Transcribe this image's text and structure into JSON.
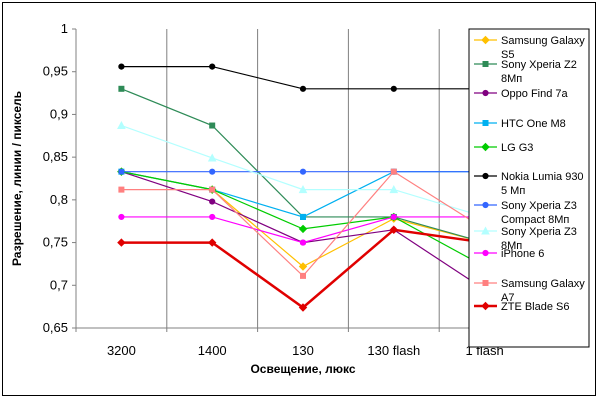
{
  "chart_data": {
    "type": "line",
    "title": "",
    "xlabel": "Освещение, люкс",
    "ylabel": "Разрешение, линии / пиксель",
    "categories": [
      "3200",
      "1400",
      "130",
      "130 flash",
      "1 flash"
    ],
    "ylim": [
      0.65,
      1.0
    ],
    "yticks": [
      0.65,
      0.7,
      0.75,
      0.8,
      0.85,
      0.9,
      0.95,
      1.0
    ],
    "ytick_labels": [
      "0,65",
      "0,7",
      "0,75",
      "0,8",
      "0,85",
      "0,9",
      "0,95",
      "1"
    ],
    "grid": "vertical",
    "legend_position": "right",
    "series": [
      {
        "name": "Samsung Galaxy S5",
        "legend_lines": [
          "Samsung Galaxy",
          "S5"
        ],
        "color": "#FFC000",
        "marker": "diamond",
        "values": [
          0.833,
          0.812,
          0.722,
          0.778,
          0.75
        ]
      },
      {
        "name": "Sony Xperia Z2 8Мп",
        "legend_lines": [
          "Sony Xperia Z2",
          "8Мп"
        ],
        "color": "#2E8B57",
        "marker": "square",
        "values": [
          0.93,
          0.887,
          0.78,
          0.78,
          0.75
        ]
      },
      {
        "name": "Oppo Find 7a",
        "legend_lines": [
          "Oppo Find 7a"
        ],
        "color": "#800080",
        "marker": "circle",
        "values": [
          0.833,
          0.798,
          0.75,
          0.765,
          0.695
        ]
      },
      {
        "name": "HTC One M8",
        "legend_lines": [
          "HTC One M8"
        ],
        "color": "#00B0F0",
        "marker": "square",
        "values": [
          0.833,
          0.812,
          0.78,
          0.833,
          0.833
        ]
      },
      {
        "name": "LG G3",
        "legend_lines": [
          "LG G3"
        ],
        "color": "#00CC00",
        "marker": "diamond",
        "values": [
          0.833,
          0.812,
          0.766,
          0.78,
          0.722
        ]
      },
      {
        "name": "Nokia Lumia 930 5 Мп",
        "legend_lines": [
          "Nokia Lumia 930",
          "5 Мп"
        ],
        "color": "#000000",
        "marker": "circle",
        "values": [
          0.956,
          0.956,
          0.93,
          0.93,
          0.93
        ]
      },
      {
        "name": "Sony Xperia Z3 Compact 8Мп",
        "legend_lines": [
          "Sony Xperia Z3",
          "Compact 8Мп"
        ],
        "color": "#3366FF",
        "marker": "circle",
        "values": [
          0.833,
          0.833,
          0.833,
          0.833,
          0.833
        ]
      },
      {
        "name": "Sony Xperia Z3 8Мп",
        "legend_lines": [
          "Sony Xperia Z3",
          "8Мп"
        ],
        "color": "#B3FFFF",
        "marker": "triangle",
        "values": [
          0.887,
          0.849,
          0.812,
          0.812,
          0.78
        ]
      },
      {
        "name": "iPhone 6",
        "legend_lines": [
          "iPhone 6"
        ],
        "color": "#FF00FF",
        "marker": "circle",
        "values": [
          0.78,
          0.78,
          0.75,
          0.78,
          0.78
        ]
      },
      {
        "name": "Samsung Galaxy A7",
        "legend_lines": [
          "Samsung Galaxy",
          "A7"
        ],
        "color": "#FF8080",
        "marker": "square",
        "values": [
          0.812,
          0.812,
          0.711,
          0.833,
          0.766
        ]
      },
      {
        "name": "ZTE Blade S6",
        "legend_lines": [
          "ZTE Blade S6"
        ],
        "color": "#E00000",
        "marker": "diamond",
        "values": [
          0.75,
          0.75,
          0.674,
          0.765,
          0.75
        ]
      }
    ]
  }
}
